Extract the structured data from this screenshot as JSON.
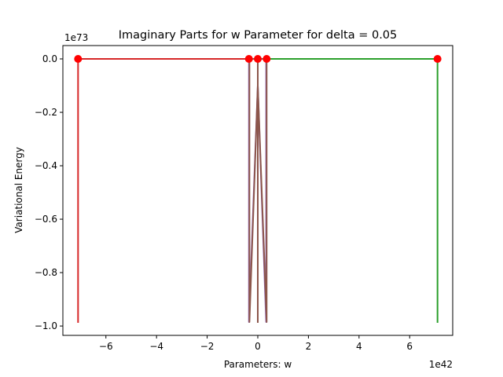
{
  "chart_data": {
    "type": "line",
    "title": "Imaginary Parts for w Parameter for delta = 0.05",
    "xlabel": "Parameters: w",
    "ylabel": "Variational Energy",
    "x_exponent_label": "1e42",
    "y_exponent_label": "1e73",
    "x_scale_exponent": 42,
    "y_scale_exponent": 73,
    "xlim": [
      -7.7,
      7.7
    ],
    "ylim": [
      -1.035,
      0.05
    ],
    "x_ticks": [
      -6,
      -4,
      -2,
      0,
      2,
      4,
      6
    ],
    "x_tick_labels": [
      "−6",
      "−4",
      "−2",
      "0",
      "2",
      "4",
      "6"
    ],
    "y_ticks": [
      0.0,
      -0.2,
      -0.4,
      -0.6,
      -0.8,
      -1.0
    ],
    "y_tick_labels": [
      "0.0",
      "−0.2",
      "−0.4",
      "−0.6",
      "−0.8",
      "−1.0"
    ],
    "grid": false,
    "legend": "none",
    "series": [
      {
        "color": "#2ca02c",
        "x": [
          0.0,
          7.1,
          7.1
        ],
        "y": [
          0.0,
          0.0,
          -0.985
        ]
      },
      {
        "color": "#d62728",
        "x": [
          0.0,
          -7.1,
          -7.1
        ],
        "y": [
          0.0,
          0.0,
          -0.985
        ]
      },
      {
        "color": "#9467bd",
        "x": [
          -0.35,
          -0.35,
          0.0,
          0.33,
          0.33,
          -0.35
        ],
        "y": [
          0.0,
          -0.985,
          -0.1,
          -0.985,
          0.0,
          0.0
        ]
      },
      {
        "color": "#8c564b",
        "x": [
          0.35,
          0.35,
          0.0,
          -0.33,
          -0.33,
          0.35,
          0.0,
          0.0
        ],
        "y": [
          0.0,
          -0.985,
          -0.1,
          -0.985,
          0.0,
          0.0,
          0.0,
          -0.985
        ]
      }
    ],
    "markers": {
      "color": "#ff0000",
      "x": [
        -7.1,
        -0.35,
        0.0,
        0.35,
        7.1
      ],
      "y": [
        0.0,
        0.0,
        0.0,
        0.0,
        0.0
      ]
    }
  }
}
